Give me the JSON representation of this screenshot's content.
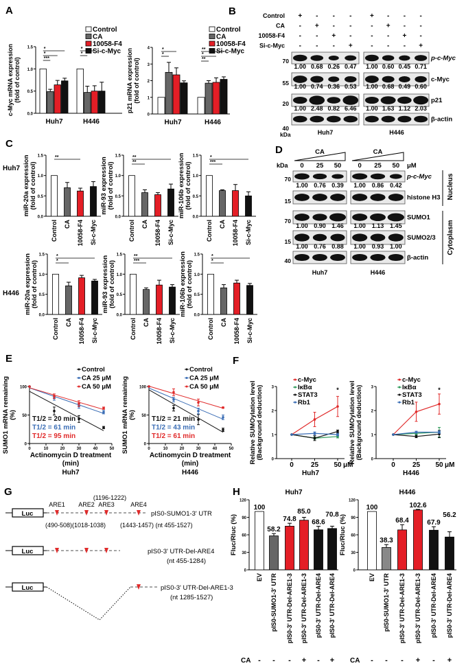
{
  "panels": {
    "A": "A",
    "B": "B",
    "C": "C",
    "D": "D",
    "E": "E",
    "F": "F",
    "G": "G",
    "H": "H"
  },
  "colors": {
    "control": "#ffffff",
    "ca": "#666666",
    "inhibitor": "#e41e26",
    "sirna": "#111111",
    "blue": "#3a6db5",
    "green": "#2f9a5a",
    "red": "#e02a2a",
    "black": "#111111"
  },
  "chart_data": [
    {
      "id": "A1",
      "type": "bar",
      "ylabel": [
        "c-Myc mRNA expression",
        "(fold of control)"
      ],
      "categories": [
        "Huh7",
        "H446"
      ],
      "series": [
        {
          "name": "Control",
          "values": [
            1.0,
            1.0
          ]
        },
        {
          "name": "CA",
          "values": [
            0.49,
            0.47
          ]
        },
        {
          "name": "10058-F4",
          "values": [
            0.64,
            0.5
          ]
        },
        {
          "name": "Si-c-Myc",
          "values": [
            0.73,
            0.5
          ]
        }
      ],
      "errors": [
        [
          0,
          0
        ],
        [
          0.05,
          0.14
        ],
        [
          0.1,
          0.12
        ],
        [
          0.06,
          0.2
        ]
      ],
      "ylim": [
        0,
        1.5
      ],
      "yticks": [
        "0.0",
        "0.5",
        "1.0",
        "1.5"
      ],
      "significance": [
        {
          "group": 0,
          "to": 3,
          "label": "*"
        },
        {
          "group": 0,
          "to": 2,
          "label": "*"
        },
        {
          "group": 0,
          "to": 1,
          "label": "***"
        },
        {
          "group": 1,
          "to": 2,
          "label": "*"
        },
        {
          "group": 1,
          "to": 1,
          "label": "*"
        }
      ]
    },
    {
      "id": "A2",
      "type": "bar",
      "ylabel": [
        "p21 mRNA expression",
        "(fold of control)"
      ],
      "categories": [
        "Huh7",
        "H446"
      ],
      "series": [
        {
          "name": "Control",
          "values": [
            1.0,
            1.0
          ]
        },
        {
          "name": "CA",
          "values": [
            2.5,
            1.85
          ]
        },
        {
          "name": "10058-F4",
          "values": [
            2.35,
            1.9
          ]
        },
        {
          "name": "Si-c-Myc",
          "values": [
            1.87,
            2.08
          ]
        }
      ],
      "errors": [
        [
          0,
          0
        ],
        [
          0.6,
          0.15
        ],
        [
          0.42,
          0.27
        ],
        [
          0.12,
          0.15
        ]
      ],
      "ylim": [
        0,
        4
      ],
      "yticks": [
        "0",
        "1",
        "2",
        "3",
        "4"
      ],
      "significance": [
        {
          "group": 0,
          "to": 2,
          "label": "*"
        },
        {
          "group": 0,
          "to": 1,
          "label": "*"
        },
        {
          "group": 1,
          "to": 3,
          "label": "**"
        },
        {
          "group": 1,
          "to": 2,
          "label": "*"
        },
        {
          "group": 1,
          "to": 1,
          "label": "**"
        }
      ]
    },
    {
      "id": "C1",
      "type": "bar",
      "row": "Huh7",
      "ylabel": [
        "miR-20a expression",
        "(fold of control)"
      ],
      "categories": [
        "Control",
        "CA",
        "10058-F4",
        "Si-c-Myc"
      ],
      "values": [
        1.0,
        0.7,
        0.62,
        0.73
      ],
      "errors": [
        0,
        0.13,
        0.07,
        0.12
      ],
      "ylim": [
        0,
        1.5
      ],
      "yticks": [
        "0.0",
        "0.5",
        "1.0",
        "1.5"
      ],
      "significance": [
        {
          "to": 2,
          "label": "**"
        }
      ]
    },
    {
      "id": "C2",
      "type": "bar",
      "row": "Huh7",
      "ylabel": [
        "miR-93 expression",
        "(fold of control)"
      ],
      "categories": [
        "Control",
        "CA",
        "10058-F4",
        "Si-c-Myc"
      ],
      "values": [
        1.0,
        0.58,
        0.53,
        0.67
      ],
      "errors": [
        0,
        0.07,
        0.05,
        0.12
      ],
      "ylim": [
        0,
        1.5
      ],
      "yticks": [
        "0.0",
        "0.5",
        "1.0",
        "1.5"
      ],
      "significance": [
        {
          "to": 3,
          "label": "**"
        },
        {
          "to": 1,
          "label": "**"
        }
      ]
    },
    {
      "id": "C3",
      "type": "bar",
      "row": "Huh7",
      "ylabel": [
        "miR-106b expression",
        "(fold of control)"
      ],
      "categories": [
        "Control",
        "CA",
        "10058-F4",
        "Si-c-Myc"
      ],
      "values": [
        1.0,
        0.63,
        0.63,
        0.5
      ],
      "errors": [
        0,
        0.02,
        0.15,
        0.1
      ],
      "ylim": [
        0,
        1.5
      ],
      "yticks": [
        "0.0",
        "0.5",
        "1.0",
        "1.5"
      ],
      "significance": [
        {
          "to": 3,
          "label": "*"
        },
        {
          "to": 1,
          "label": "***"
        }
      ]
    },
    {
      "id": "C4",
      "type": "bar",
      "row": "H446",
      "ylabel": [
        "miR-20a expression",
        "(fold of control)"
      ],
      "categories": [
        "Control",
        "CA",
        "10058-F4",
        "Si-c-Myc"
      ],
      "values": [
        1.0,
        0.71,
        0.91,
        0.83
      ],
      "errors": [
        0,
        0.09,
        0.06,
        0.04
      ],
      "ylim": [
        0,
        1.5
      ],
      "yticks": [
        "0.0",
        "0.5",
        "1.0",
        "1.5"
      ],
      "significance": [
        {
          "to": 3,
          "label": "*"
        },
        {
          "to": 1,
          "label": "*"
        }
      ]
    },
    {
      "id": "C5",
      "type": "bar",
      "row": "H446",
      "ylabel": [
        "miR-93 expression",
        "(fold of control)"
      ],
      "categories": [
        "Control",
        "CA",
        "10058-F4",
        "Si-c-Myc"
      ],
      "values": [
        1.0,
        0.62,
        0.73,
        0.68
      ],
      "errors": [
        0,
        0.04,
        0.12,
        0.06
      ],
      "ylim": [
        0,
        1.5
      ],
      "yticks": [
        "0.0",
        "0.5",
        "1.0",
        "1.5"
      ],
      "significance": [
        {
          "to": 3,
          "label": "**"
        },
        {
          "to": 1,
          "label": "***"
        }
      ]
    },
    {
      "id": "C6",
      "type": "bar",
      "row": "H446",
      "ylabel": [
        "miR-106b expression",
        "(fold of control)"
      ],
      "categories": [
        "Control",
        "CA",
        "10058-F4",
        "Si-c-Myc"
      ],
      "values": [
        1.0,
        0.66,
        0.78,
        0.72
      ],
      "errors": [
        0,
        0.08,
        0.07,
        0.05
      ],
      "ylim": [
        0,
        1.5
      ],
      "yticks": [
        "0.0",
        "0.5",
        "1.0",
        "1.5"
      ],
      "significance": [
        {
          "to": 3,
          "label": "*"
        },
        {
          "to": 1,
          "label": "*"
        }
      ]
    },
    {
      "id": "E1",
      "type": "line",
      "ylabel": [
        "SUMO1 mRNA remaining",
        "(%)"
      ],
      "xlabel": [
        "Actinomycin D treatment",
        "(min)"
      ],
      "cell": "Huh7",
      "x": [
        0,
        15,
        30,
        45
      ],
      "xlim": [
        0,
        50
      ],
      "xticks": [
        "0",
        "10",
        "20",
        "30",
        "40",
        "50"
      ],
      "ylim": [
        0,
        100
      ],
      "yticks": [
        "0",
        "50",
        "100"
      ],
      "series": [
        {
          "name": "Control",
          "values": [
            100,
            57,
            43,
            28
          ],
          "errors": [
            0,
            7,
            6,
            2
          ],
          "color": "#111111"
        },
        {
          "name": "CA 25 μM",
          "values": [
            100,
            80,
            66,
            55
          ],
          "errors": [
            0,
            4,
            4,
            3
          ],
          "color": "#3a6db5"
        },
        {
          "name": "CA 50 μM",
          "values": [
            100,
            83,
            70,
            62
          ],
          "errors": [
            0,
            4,
            5,
            2
          ],
          "color": "#e02a2a"
        }
      ],
      "half_lives": [
        "T1/2 = 20 min",
        "T1/2 = 61 min",
        "T1/2 = 95 min"
      ]
    },
    {
      "id": "E2",
      "type": "line",
      "ylabel": [
        "SUMO1 mRNA remaining",
        "(%)"
      ],
      "xlabel": [
        "Actinomycin D treatment",
        "(min)"
      ],
      "cell": "H446",
      "x": [
        0,
        15,
        30,
        45
      ],
      "xlim": [
        0,
        50
      ],
      "xticks": [
        "0",
        "10",
        "20",
        "30",
        "40",
        "50"
      ],
      "ylim": [
        0,
        100
      ],
      "yticks": [
        "0",
        "50",
        "100"
      ],
      "series": [
        {
          "name": "Control",
          "values": [
            100,
            62,
            42,
            24
          ],
          "errors": [
            0,
            5,
            9,
            3
          ],
          "color": "#111111"
        },
        {
          "name": "CA 25 μM",
          "values": [
            100,
            77,
            57,
            46
          ],
          "errors": [
            0,
            4,
            5,
            4
          ],
          "color": "#3a6db5"
        },
        {
          "name": "CA 50 μM",
          "values": [
            100,
            90,
            72,
            63
          ],
          "errors": [
            0,
            6,
            6,
            1
          ],
          "color": "#e02a2a"
        }
      ],
      "half_lives": [
        "T1/2 = 21 min",
        "T1/2 = 43 min",
        "T1/2 = 61 min"
      ]
    },
    {
      "id": "F1",
      "type": "line",
      "ylabel": [
        "Relative SUMOylation level",
        "(Background deduction)"
      ],
      "cell": "Huh7",
      "x": [
        0,
        25,
        50
      ],
      "xticks": [
        "0",
        "25",
        "50"
      ],
      "xunit": "μM",
      "ylim": [
        0,
        3
      ],
      "yticks": [
        "0",
        "1",
        "2",
        "3"
      ],
      "series": [
        {
          "name": "c-Myc",
          "values": [
            1,
            1.63,
            2.17
          ],
          "errors": [
            0,
            0.3,
            0.42
          ],
          "color": "#e02a2a"
        },
        {
          "name": "IκBα",
          "values": [
            1,
            0.85,
            0.92
          ],
          "errors": [
            0,
            0.05,
            0.06
          ],
          "color": "#2f9a5a"
        },
        {
          "name": "STAT3",
          "values": [
            1,
            0.85,
            1.13
          ],
          "errors": [
            0,
            0.1,
            0.06
          ],
          "color": "#111111"
        },
        {
          "name": "Rb1",
          "values": [
            1,
            1.05,
            1.0
          ],
          "errors": [
            0,
            0.06,
            0.05
          ],
          "color": "#3a6db5"
        }
      ],
      "annotations": [
        {
          "x": 50,
          "label": "*"
        }
      ]
    },
    {
      "id": "F2",
      "type": "line",
      "ylabel": [
        "Relative SUMOylation level",
        "(Background deduction)"
      ],
      "cell": "H446",
      "x": [
        0,
        25,
        50
      ],
      "xticks": [
        "0",
        "25",
        "50"
      ],
      "xunit": "μM",
      "ylim": [
        0,
        3
      ],
      "yticks": [
        "0",
        "1",
        "2",
        "3"
      ],
      "series": [
        {
          "name": "c-Myc",
          "values": [
            1,
            1.95,
            2.27
          ],
          "errors": [
            0,
            0.4,
            0.42
          ],
          "color": "#e02a2a"
        },
        {
          "name": "IκBα",
          "values": [
            1,
            1.05,
            1.1
          ],
          "errors": [
            0,
            0.05,
            0.2
          ],
          "color": "#2f9a5a"
        },
        {
          "name": "STAT3",
          "values": [
            1,
            0.92,
            1.02
          ],
          "errors": [
            0,
            0.05,
            0.15
          ],
          "color": "#111111"
        },
        {
          "name": "Rb1",
          "values": [
            1,
            1.1,
            1.1
          ],
          "errors": [
            0,
            0.04,
            0.05
          ],
          "color": "#3a6db5"
        }
      ],
      "annotations": [
        {
          "x": 50,
          "label": "*"
        }
      ]
    },
    {
      "id": "H1",
      "type": "bar",
      "title": "Huh7",
      "ylabel": [
        "Fluc/Rluc (%)"
      ],
      "categories": [
        "EV",
        "pIS0-SUMO1-3' UTR",
        "pIS0-3' UTR-Del-ARE1-3",
        "pIS0-3' UTR-Del-ARE1-3",
        "pIS0-3' UTR-Del-ARE4",
        "pIS0-3' UTR-Del-ARE4"
      ],
      "values": [
        100,
        58.2,
        74.8,
        85.0,
        68.6,
        70.8
      ],
      "data_labels": [
        "100",
        "58.2",
        "74.8",
        "85.0",
        "68.6",
        "70.8"
      ],
      "errors": [
        0,
        4,
        5,
        5,
        6,
        4
      ],
      "bar_colors": [
        "#ffffff",
        "#666666",
        "#e41e26",
        "#e41e26",
        "#111111",
        "#111111"
      ],
      "ylim": [
        0,
        120
      ],
      "yticks": [
        "0",
        "30",
        "60",
        "90",
        "120"
      ],
      "ca": [
        "-",
        "-",
        "-",
        "+",
        "-",
        "+"
      ]
    },
    {
      "id": "H2",
      "type": "bar",
      "title": "H446",
      "ylabel": [
        "Fluc/Rluc (%)"
      ],
      "categories": [
        "EV",
        "pIS0-SUMO1-3' UTR",
        "pIS0-3' UTR-Del-ARE1-3",
        "pIS0-3' UTR-Del-ARE1-3",
        "pIS0-3' UTR-Del-ARE4",
        "pIS0-3' UTR-Del-ARE4"
      ],
      "values": [
        100,
        38.3,
        68.4,
        102.6,
        67.9,
        56.2
      ],
      "data_labels": [
        "100",
        "38.3",
        "68.4",
        "102.6",
        "67.9",
        "56.2"
      ],
      "errors": [
        0,
        5,
        9,
        1,
        6,
        9
      ],
      "bar_colors": [
        "#ffffff",
        "#888888",
        "#e41e26",
        "#e41e26",
        "#111111",
        "#111111"
      ],
      "ylim": [
        0,
        120
      ],
      "yticks": [
        "0",
        "30",
        "60",
        "90",
        "120"
      ],
      "ca": [
        "-",
        "-",
        "-",
        "+",
        "-",
        "+"
      ]
    }
  ],
  "legend_A": [
    "Control",
    "CA",
    "10058-F4",
    "Si-c-Myc"
  ],
  "row_labels_C": [
    "Huh7",
    "H446"
  ],
  "ca_label": "CA",
  "blot_B": {
    "conditions": [
      {
        "label": "Control",
        "signs": [
          "+",
          "-",
          "-",
          "-",
          "+",
          "-",
          "-",
          "-"
        ]
      },
      {
        "label": "CA",
        "signs": [
          "-",
          "+",
          "-",
          "-",
          "-",
          "+",
          "-",
          "-"
        ]
      },
      {
        "label": "10058-F4",
        "signs": [
          "-",
          "-",
          "+",
          "-",
          "-",
          "-",
          "+",
          "-"
        ]
      },
      {
        "label": "Si-c-Myc",
        "signs": [
          "-",
          "-",
          "-",
          "+",
          "-",
          "-",
          "-",
          "+"
        ]
      }
    ],
    "rows": [
      {
        "label": "p-c-Myc",
        "marker": "70",
        "huh7": [
          "1.00",
          "0.68",
          "0.26",
          "0.47"
        ],
        "h446": [
          "1.00",
          "0.60",
          "0.45",
          "0.71"
        ]
      },
      {
        "label": "c-Myc",
        "marker": "55",
        "huh7": [
          "1.00",
          "0.74",
          "0.36",
          "0.53"
        ],
        "h446": [
          "1.00",
          "0.68",
          "0.49",
          "0.60"
        ]
      },
      {
        "label": "p21",
        "marker": "20",
        "huh7": [
          "1.00",
          "2.48",
          "0.82",
          "6.46"
        ],
        "h446": [
          "1.00",
          "1.63",
          "1.12",
          "2.03"
        ]
      },
      {
        "label": "β-actin",
        "marker": "40",
        "huh7": null,
        "h446": null
      }
    ],
    "kda": "kDa",
    "cells": [
      "Huh7",
      "H446"
    ]
  },
  "blot_D": {
    "treatment": "CA",
    "doses": [
      "0",
      "25",
      "50"
    ],
    "unit": "μM",
    "kda": "kDa",
    "cells": [
      "Huh7",
      "H446"
    ],
    "rows": [
      {
        "label": "p-c-Myc",
        "marker": "70",
        "huh7": [
          "1.00",
          "0.76",
          "0.39"
        ],
        "h446": [
          "1.00",
          "0.86",
          "0.42"
        ]
      },
      {
        "label": "histone H3",
        "marker": "15",
        "huh7": null,
        "h446": null
      },
      {
        "label": "SUMO1",
        "marker": "70",
        "huh7": [
          "1.00",
          "0.90",
          "1.46"
        ],
        "h446": [
          "1.00",
          "1.13",
          "1.45"
        ]
      },
      {
        "label": "SUMO2/3",
        "marker": "15",
        "huh7": [
          "1.00",
          "0.76",
          "0.88"
        ],
        "h446": [
          "1.00",
          "0.93",
          "1.00"
        ]
      },
      {
        "label": "β-actin",
        "marker": "40",
        "huh7": null,
        "h446": null
      }
    ],
    "fractions": [
      "Nucleus",
      "Cytoplasm"
    ]
  },
  "diagram_G": {
    "box": "Luc",
    "ares": [
      "ARE1",
      "ARE2",
      "ARE3",
      "ARE4"
    ],
    "ranges": [
      "(490-508)(1018-1038)",
      "(1196-1222)",
      "(1443-1457) (nt 455-1527)"
    ],
    "constructs": [
      {
        "name": "pIS0-SUMO1-3' UTR"
      },
      {
        "name": "pIS0-3' UTR-Del-ARE4",
        "range": "(nt 455-1284)"
      },
      {
        "name": "pIS0-3' UTR-Del-ARE1-3",
        "range": "(nt 1285-1527)"
      }
    ]
  }
}
